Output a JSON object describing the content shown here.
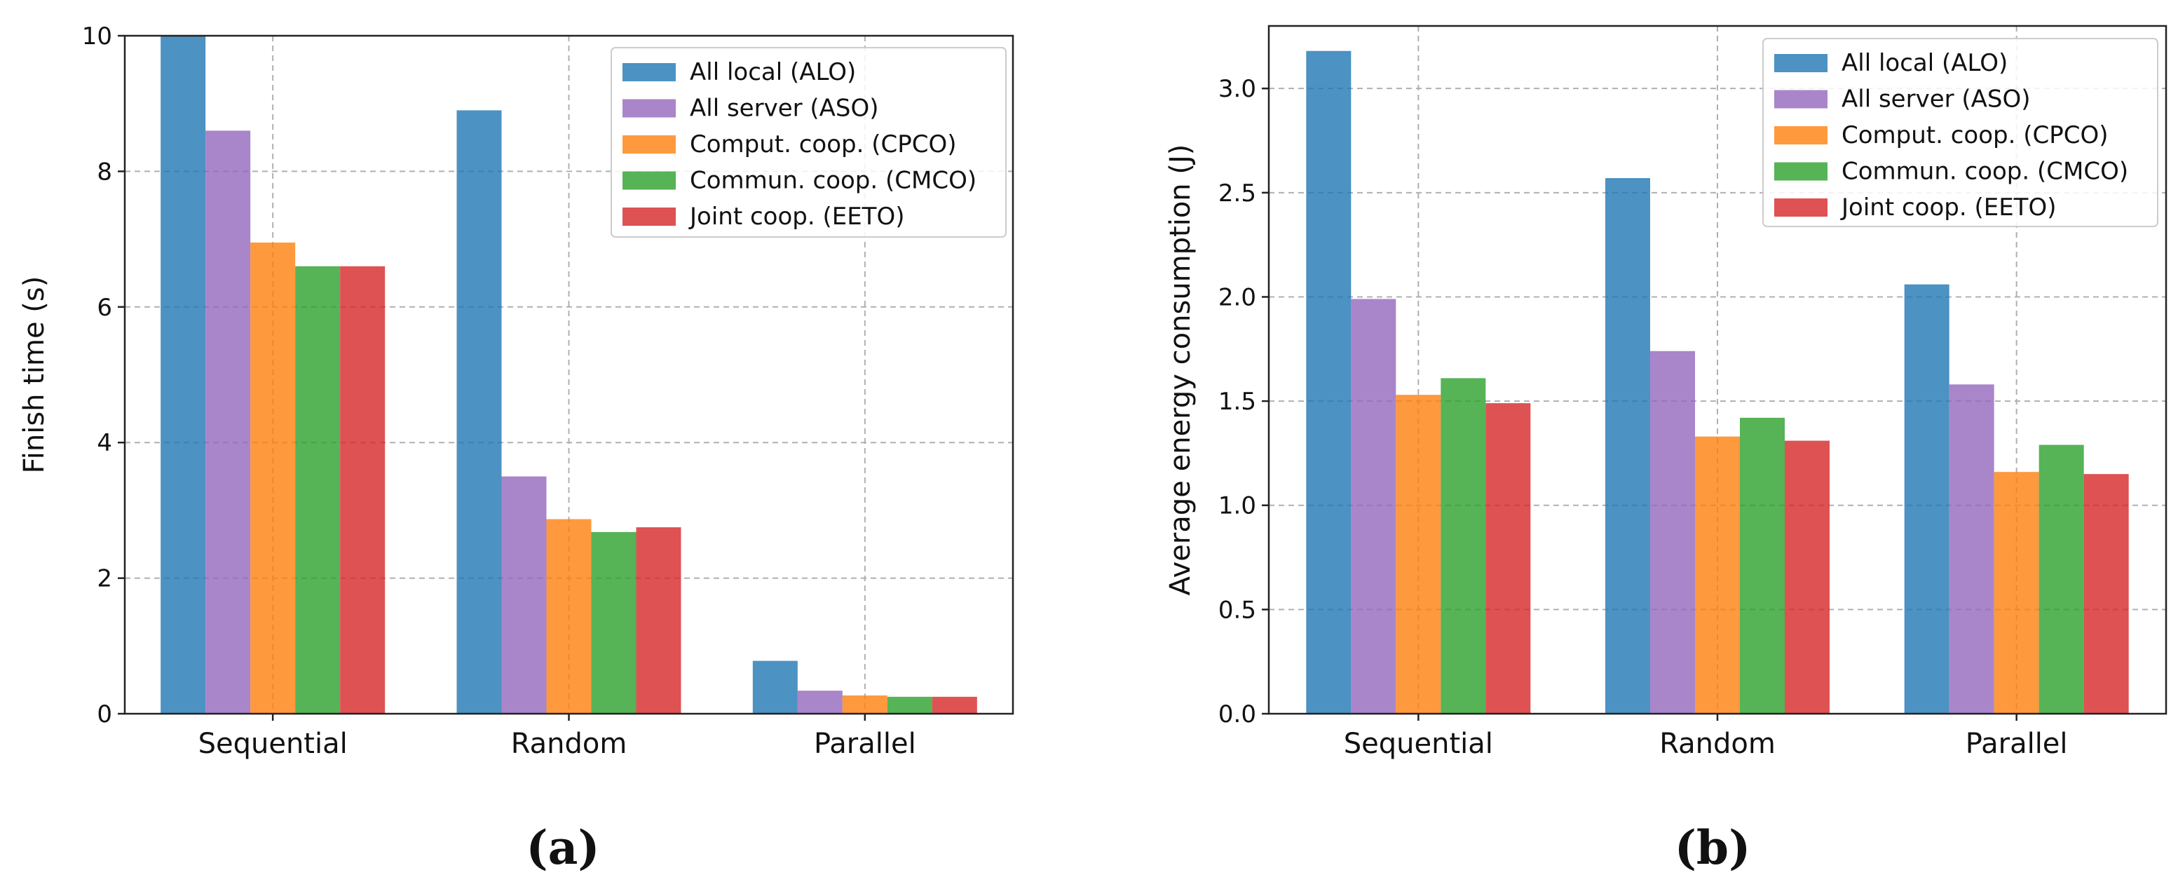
{
  "chart_data": [
    {
      "panel_label": "(a)",
      "type": "bar",
      "categories": [
        "Sequential",
        "Random",
        "Parallel"
      ],
      "ylabel": "Finish time (s)",
      "xlabel": "",
      "ylim": [
        0,
        10
      ],
      "yticks": [
        0,
        2,
        4,
        6,
        8,
        10
      ],
      "ytick_labels": [
        "0",
        "2",
        "4",
        "6",
        "8",
        "10"
      ],
      "grid": true,
      "legend_position": "upper-right",
      "series": [
        {
          "name": "All local (ALO)",
          "color": "#1f77b4",
          "values": [
            10.0,
            8.9,
            0.78
          ]
        },
        {
          "name": "All server (ASO)",
          "color": "#9467bd",
          "values": [
            8.6,
            3.5,
            0.34
          ]
        },
        {
          "name": "Comput. coop. (CPCO)",
          "color": "#ff7f0e",
          "values": [
            6.95,
            2.87,
            0.27
          ]
        },
        {
          "name": "Commun. coop. (CMCO)",
          "color": "#2ca02c",
          "values": [
            6.6,
            2.68,
            0.25
          ]
        },
        {
          "name": "Joint coop. (EETO)",
          "color": "#d62728",
          "values": [
            6.6,
            2.75,
            0.25
          ]
        }
      ]
    },
    {
      "panel_label": "(b)",
      "type": "bar",
      "categories": [
        "Sequential",
        "Random",
        "Parallel"
      ],
      "ylabel": "Average energy consumption (J)",
      "xlabel": "",
      "ylim": [
        0,
        3.3
      ],
      "yticks": [
        0,
        0.5,
        1.0,
        1.5,
        2.0,
        2.5,
        3.0
      ],
      "ytick_labels": [
        "0.0",
        "0.5",
        "1.0",
        "1.5",
        "2.0",
        "2.5",
        "3.0"
      ],
      "grid": true,
      "legend_position": "upper-right",
      "series": [
        {
          "name": "All local (ALO)",
          "color": "#1f77b4",
          "values": [
            3.18,
            2.57,
            2.06
          ]
        },
        {
          "name": "All server (ASO)",
          "color": "#9467bd",
          "values": [
            1.99,
            1.74,
            1.58
          ]
        },
        {
          "name": "Comput. coop. (CPCO)",
          "color": "#ff7f0e",
          "values": [
            1.53,
            1.33,
            1.16
          ]
        },
        {
          "name": "Commun. coop. (CMCO)",
          "color": "#2ca02c",
          "values": [
            1.61,
            1.42,
            1.29
          ]
        },
        {
          "name": "Joint coop. (EETO)",
          "color": "#d62728",
          "values": [
            1.49,
            1.31,
            1.15
          ]
        }
      ]
    }
  ]
}
